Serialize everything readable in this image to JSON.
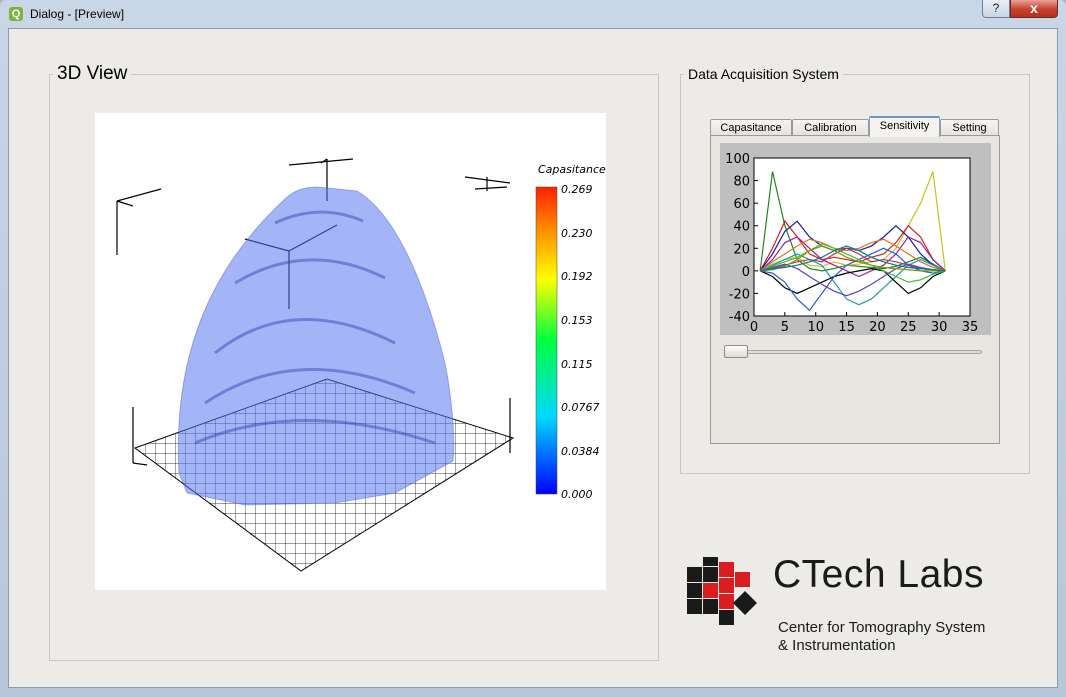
{
  "window": {
    "title": "Dialog - [Preview]",
    "app_icon_glyph": "Q",
    "help_label": "?",
    "close_label": "x"
  },
  "view3d": {
    "group_title": "3D View",
    "colorbar": {
      "title": "Capasitance",
      "ticks": [
        "0.269",
        "0.230",
        "0.192",
        "0.153",
        "0.115",
        "0.0767",
        "0.0384",
        "0.000"
      ],
      "colors": [
        "#0000ff",
        "#00d8ff",
        "#00ff40",
        "#ffff00",
        "#ff7f00",
        "#ff2000"
      ]
    },
    "surface_color": "#5a78f0"
  },
  "daq": {
    "group_title": "Data Acquisition System",
    "tabs": [
      {
        "label": "Capasitance",
        "active": false
      },
      {
        "label": "Calibration",
        "active": false
      },
      {
        "label": "Sensitivity",
        "active": true
      },
      {
        "label": "Setting",
        "active": false
      }
    ],
    "slider": {
      "value_fraction": 0.0
    }
  },
  "chart_data": {
    "type": "line",
    "xlim": [
      0,
      35
    ],
    "ylim": [
      -40,
      100
    ],
    "xticks": [
      "0",
      "5",
      "10",
      "15",
      "20",
      "25",
      "30",
      "35"
    ],
    "yticks": [
      "100",
      "80",
      "60",
      "40",
      "20",
      "0",
      "-20",
      "-40"
    ],
    "x": [
      1,
      3,
      5,
      7,
      9,
      11,
      13,
      15,
      17,
      19,
      21,
      23,
      25,
      27,
      29,
      31
    ],
    "series": [
      {
        "color": "#1a8a1a",
        "values": [
          0,
          88,
          40,
          10,
          2,
          0,
          2,
          5,
          4,
          3,
          2,
          4,
          8,
          12,
          6,
          0
        ]
      },
      {
        "color": "#c8c020",
        "values": [
          0,
          6,
          10,
          12,
          5,
          4,
          8,
          5,
          6,
          8,
          10,
          20,
          40,
          60,
          88,
          0
        ]
      },
      {
        "color": "#d42020",
        "values": [
          0,
          20,
          44,
          30,
          15,
          10,
          12,
          10,
          8,
          12,
          15,
          25,
          40,
          30,
          10,
          0
        ]
      },
      {
        "color": "#1a1aa0",
        "values": [
          0,
          15,
          35,
          44,
          30,
          22,
          18,
          20,
          18,
          22,
          30,
          40,
          30,
          15,
          5,
          0
        ]
      },
      {
        "color": "#20a0a0",
        "values": [
          0,
          5,
          10,
          15,
          10,
          5,
          -10,
          -25,
          -30,
          -25,
          -15,
          -5,
          5,
          10,
          5,
          0
        ]
      },
      {
        "color": "#a020a0",
        "values": [
          0,
          10,
          25,
          30,
          20,
          10,
          5,
          0,
          -5,
          0,
          5,
          15,
          30,
          25,
          10,
          0
        ]
      },
      {
        "color": "#000000",
        "values": [
          0,
          -5,
          -15,
          -20,
          -15,
          -10,
          -5,
          -2,
          0,
          2,
          0,
          -10,
          -20,
          -15,
          -5,
          0
        ]
      },
      {
        "color": "#e07020",
        "values": [
          0,
          8,
          15,
          22,
          28,
          25,
          20,
          18,
          20,
          25,
          28,
          22,
          15,
          8,
          3,
          0
        ]
      },
      {
        "color": "#2060e0",
        "values": [
          0,
          -2,
          -10,
          -25,
          -35,
          -20,
          -5,
          5,
          10,
          15,
          20,
          15,
          5,
          0,
          -2,
          0
        ]
      },
      {
        "color": "#40c040",
        "values": [
          0,
          4,
          8,
          12,
          18,
          24,
          20,
          15,
          10,
          5,
          0,
          -5,
          -10,
          -8,
          -3,
          0
        ]
      },
      {
        "color": "#c03060",
        "values": [
          0,
          2,
          5,
          8,
          10,
          8,
          15,
          20,
          15,
          8,
          10,
          8,
          5,
          2,
          1,
          0
        ]
      },
      {
        "color": "#6040c0",
        "values": [
          0,
          3,
          6,
          2,
          -5,
          -12,
          -18,
          -22,
          -18,
          -12,
          -5,
          2,
          6,
          3,
          1,
          0
        ]
      },
      {
        "color": "#909000",
        "values": [
          0,
          1,
          4,
          10,
          18,
          22,
          18,
          12,
          8,
          5,
          3,
          2,
          1,
          0,
          0,
          0
        ]
      },
      {
        "color": "#008080",
        "values": [
          0,
          2,
          3,
          5,
          8,
          12,
          18,
          22,
          18,
          12,
          8,
          5,
          3,
          2,
          1,
          0
        ]
      }
    ]
  },
  "logo": {
    "title": "CTech Labs",
    "line1": "Center for Tomography System",
    "line2": "& Instrumentation"
  }
}
